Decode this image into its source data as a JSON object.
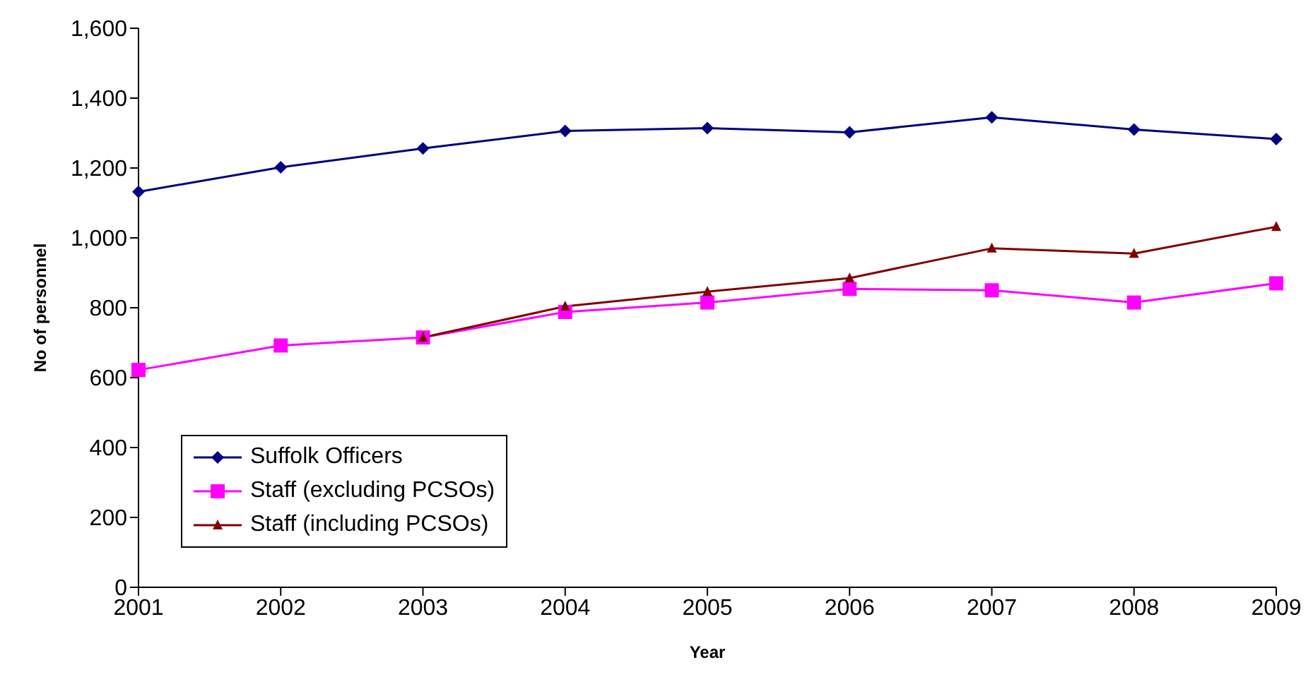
{
  "chart_data": {
    "type": "line",
    "xlabel": "Year",
    "ylabel": "No of personnel",
    "categories": [
      "2001",
      "2002",
      "2003",
      "2004",
      "2005",
      "2006",
      "2007",
      "2008",
      "2009"
    ],
    "series": [
      {
        "name": "Suffolk Officers",
        "color": "#000080",
        "marker": "diamond",
        "values": [
          1132,
          1202,
          1256,
          1306,
          1314,
          1302,
          1345,
          1310,
          1283
        ]
      },
      {
        "name": "Staff (excluding PCSOs)",
        "color": "#ff00ff",
        "marker": "square",
        "values": [
          622,
          692,
          715,
          788,
          815,
          854,
          850,
          815,
          870
        ]
      },
      {
        "name": "Staff (including PCSOs)",
        "color": "#800000",
        "marker": "triangle",
        "values": [
          null,
          null,
          715,
          804,
          846,
          885,
          970,
          955,
          1032
        ]
      }
    ],
    "ylim": [
      0,
      1600
    ],
    "yticks": [
      0,
      200,
      400,
      600,
      800,
      {
        "value": 1000,
        "label": "1,000"
      },
      {
        "value": 1200,
        "label": "1,200"
      },
      {
        "value": 1400,
        "label": "1,400"
      },
      {
        "value": 1600,
        "label": "1,600"
      }
    ],
    "grid": false,
    "legend": "bottom left",
    "line_style": "solid"
  }
}
